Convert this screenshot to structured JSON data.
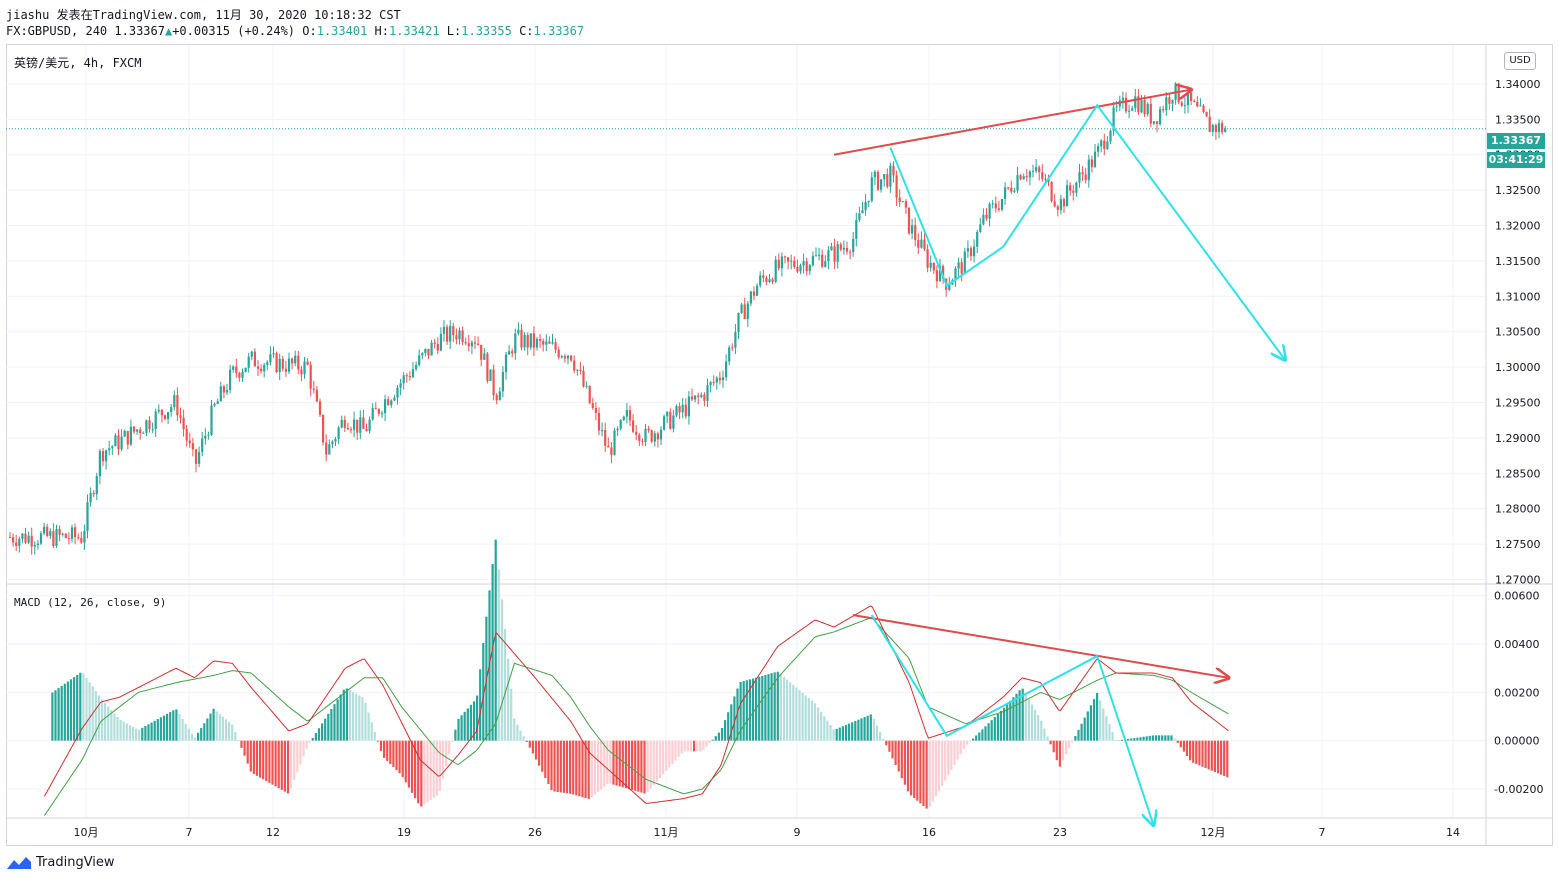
{
  "header": {
    "line1": "jiashu 发表在TradingView.com, 11月 30, 2020 10:18:32 CST",
    "symbol": "FX:GBPUSD, 240",
    "last": "1.33367",
    "change": "+0.00315 (+0.24%)",
    "o_label": "O:",
    "o": "1.33401",
    "h_label": "H:",
    "h": "1.33421",
    "l_label": "L:",
    "l": "1.33355",
    "c_label": "C:",
    "c": "1.33367"
  },
  "symbol_label": "英镑/美元, 4h, FXCM",
  "macd_label": "MACD (12, 26, close, 9)",
  "currency_badge": "USD",
  "price_tag": "1.33367",
  "countdown_tag": "03:41:29",
  "brand": "TradingView",
  "colors": {
    "up": "#26a69a",
    "down": "#ef5350",
    "arrow_red": "#e04b4b",
    "arrow_cyan": "#2de3e8",
    "macd_line": "#d32f2f",
    "signal_line": "#43a047"
  },
  "chart_data": [
    {
      "type": "candlestick",
      "title": "英镑/美元, 4h, FXCM",
      "y_ticks": [
        "1.34000",
        "1.33500",
        "1.33000",
        "1.32500",
        "1.32000",
        "1.31500",
        "1.31000",
        "1.30500",
        "1.30000",
        "1.29500",
        "1.29000",
        "1.28500",
        "1.28000",
        "1.27500",
        "1.27000"
      ],
      "ylim": [
        1.2695,
        1.3455
      ],
      "x_ticks": [
        "10月",
        "7",
        "12",
        "19",
        "26",
        "11月",
        "9",
        "16",
        "23",
        "12月",
        "7",
        "14"
      ],
      "last_price": 1.33367,
      "close_path": [
        {
          "date": "2020-09-30",
          "close": 1.276
        },
        {
          "date": "2020-10-01",
          "close": 1.288
        },
        {
          "date": "2020-10-02",
          "close": 1.2895
        },
        {
          "date": "2020-10-05",
          "close": 1.295
        },
        {
          "date": "2020-10-06",
          "close": 1.286
        },
        {
          "date": "2020-10-07",
          "close": 1.294
        },
        {
          "date": "2020-10-08",
          "close": 1.299
        },
        {
          "date": "2020-10-09",
          "close": 1.301
        },
        {
          "date": "2020-10-12",
          "close": 1.3
        },
        {
          "date": "2020-10-13",
          "close": 1.288
        },
        {
          "date": "2020-10-14",
          "close": 1.293
        },
        {
          "date": "2020-10-15",
          "close": 1.291
        },
        {
          "date": "2020-10-16",
          "close": 1.295
        },
        {
          "date": "2020-10-19",
          "close": 1.304
        },
        {
          "date": "2020-10-20",
          "close": 1.305
        },
        {
          "date": "2020-10-21",
          "close": 1.304
        },
        {
          "date": "2020-10-22",
          "close": 1.296
        },
        {
          "date": "2020-10-23",
          "close": 1.304
        },
        {
          "date": "2020-10-26",
          "close": 1.302
        },
        {
          "date": "2020-10-27",
          "close": 1.295
        },
        {
          "date": "2020-10-28",
          "close": 1.288
        },
        {
          "date": "2020-10-29",
          "close": 1.293
        },
        {
          "date": "2020-10-30",
          "close": 1.29
        },
        {
          "date": "2020-11-02",
          "close": 1.296
        },
        {
          "date": "2020-11-03",
          "close": 1.299
        },
        {
          "date": "2020-11-04",
          "close": 1.307
        },
        {
          "date": "2020-11-05",
          "close": 1.312
        },
        {
          "date": "2020-11-06",
          "close": 1.314
        },
        {
          "date": "2020-11-09",
          "close": 1.316
        },
        {
          "date": "2020-11-10",
          "close": 1.318
        },
        {
          "date": "2020-11-11",
          "close": 1.326
        },
        {
          "date": "2020-11-12",
          "close": 1.327
        },
        {
          "date": "2020-11-13",
          "close": 1.32
        },
        {
          "date": "2020-11-14",
          "close": 1.315
        },
        {
          "date": "2020-11-15",
          "close": 1.312
        },
        {
          "date": "2020-11-16",
          "close": 1.315
        },
        {
          "date": "2020-11-17",
          "close": 1.321
        },
        {
          "date": "2020-11-18",
          "close": 1.324
        },
        {
          "date": "2020-11-19",
          "close": 1.328
        },
        {
          "date": "2020-11-20",
          "close": 1.327
        },
        {
          "date": "2020-11-21",
          "close": 1.323
        },
        {
          "date": "2020-11-23",
          "close": 1.33
        },
        {
          "date": "2020-11-24",
          "close": 1.336
        },
        {
          "date": "2020-11-25",
          "close": 1.338
        },
        {
          "date": "2020-11-26",
          "close": 1.335
        },
        {
          "date": "2020-11-27",
          "close": 1.339
        },
        {
          "date": "2020-11-28",
          "close": 1.337
        },
        {
          "date": "2020-11-29",
          "close": 1.334
        },
        {
          "date": "2020-11-30",
          "close": 1.33367
        }
      ],
      "annotations": {
        "red_trendline": {
          "from": {
            "date": "2020-11-09",
            "price": 1.33
          },
          "to": {
            "date": "2020-11-28",
            "price": 1.3392
          }
        },
        "cyan_path": [
          {
            "date": "2020-11-12",
            "price": 1.331
          },
          {
            "date": "2020-11-15",
            "price": 1.3115
          },
          {
            "date": "2020-11-18",
            "price": 1.317
          },
          {
            "date": "2020-11-23",
            "price": 1.337
          },
          {
            "date": "2020-12-03",
            "price": 1.301
          }
        ]
      }
    },
    {
      "type": "line",
      "title": "MACD (12, 26, close, 9)",
      "y_ticks": [
        "0.00600",
        "0.00400",
        "0.00200",
        "0.00000",
        "-0.00200"
      ],
      "ylim": [
        -0.0032,
        0.0064
      ],
      "series": [
        {
          "name": "MACD",
          "values": [
            {
              "date": "2020-09-28",
              "value": -0.0023
            },
            {
              "date": "2020-09-30",
              "value": 0.0005
            },
            {
              "date": "2020-10-01",
              "value": 0.0016
            },
            {
              "date": "2020-10-02",
              "value": 0.0018
            },
            {
              "date": "2020-10-05",
              "value": 0.003
            },
            {
              "date": "2020-10-06",
              "value": 0.0026
            },
            {
              "date": "2020-10-07",
              "value": 0.0033
            },
            {
              "date": "2020-10-08",
              "value": 0.0032
            },
            {
              "date": "2020-10-09",
              "value": 0.0022
            },
            {
              "date": "2020-10-11",
              "value": 0.0004
            },
            {
              "date": "2020-10-12",
              "value": 0.0007
            },
            {
              "date": "2020-10-14",
              "value": 0.003
            },
            {
              "date": "2020-10-15",
              "value": 0.0034
            },
            {
              "date": "2020-10-16",
              "value": 0.0023
            },
            {
              "date": "2020-10-18",
              "value": -0.0008
            },
            {
              "date": "2020-10-19",
              "value": -0.0015
            },
            {
              "date": "2020-10-20",
              "value": -0.0006
            },
            {
              "date": "2020-10-21",
              "value": 0.0004
            },
            {
              "date": "2020-10-22",
              "value": 0.0045
            },
            {
              "date": "2020-10-24",
              "value": 0.0027
            },
            {
              "date": "2020-10-26",
              "value": 0.0008
            },
            {
              "date": "2020-10-27",
              "value": -0.0005
            },
            {
              "date": "2020-10-28",
              "value": -0.0012
            },
            {
              "date": "2020-10-30",
              "value": -0.0026
            },
            {
              "date": "2020-11-01",
              "value": -0.0024
            },
            {
              "date": "2020-11-02",
              "value": -0.0022
            },
            {
              "date": "2020-11-03",
              "value": -0.001
            },
            {
              "date": "2020-11-04",
              "value": 0.0015
            },
            {
              "date": "2020-11-06",
              "value": 0.0039
            },
            {
              "date": "2020-11-08",
              "value": 0.005
            },
            {
              "date": "2020-11-09",
              "value": 0.0047
            },
            {
              "date": "2020-11-11",
              "value": 0.0056
            },
            {
              "date": "2020-11-13",
              "value": 0.0024
            },
            {
              "date": "2020-11-14",
              "value": 0.0001
            },
            {
              "date": "2020-11-16",
              "value": 0.0006
            },
            {
              "date": "2020-11-18",
              "value": 0.0018
            },
            {
              "date": "2020-11-19",
              "value": 0.0026
            },
            {
              "date": "2020-11-20",
              "value": 0.0024
            },
            {
              "date": "2020-11-21",
              "value": 0.0012
            },
            {
              "date": "2020-11-23",
              "value": 0.0034
            },
            {
              "date": "2020-11-24",
              "value": 0.0028
            },
            {
              "date": "2020-11-26",
              "value": 0.0028
            },
            {
              "date": "2020-11-27",
              "value": 0.0026
            },
            {
              "date": "2020-11-28",
              "value": 0.0016
            },
            {
              "date": "2020-11-30",
              "value": 0.0004
            }
          ]
        },
        {
          "name": "Signal",
          "values": [
            {
              "date": "2020-09-28",
              "value": -0.0031
            },
            {
              "date": "2020-09-30",
              "value": -0.0008
            },
            {
              "date": "2020-10-01",
              "value": 0.0008
            },
            {
              "date": "2020-10-03",
              "value": 0.002
            },
            {
              "date": "2020-10-05",
              "value": 0.0024
            },
            {
              "date": "2020-10-07",
              "value": 0.0027
            },
            {
              "date": "2020-10-08",
              "value": 0.0029
            },
            {
              "date": "2020-10-09",
              "value": 0.0028
            },
            {
              "date": "2020-10-11",
              "value": 0.0014
            },
            {
              "date": "2020-10-12",
              "value": 0.0008
            },
            {
              "date": "2020-10-13",
              "value": 0.0014
            },
            {
              "date": "2020-10-15",
              "value": 0.0026
            },
            {
              "date": "2020-10-16",
              "value": 0.0026
            },
            {
              "date": "2020-10-17",
              "value": 0.0014
            },
            {
              "date": "2020-10-19",
              "value": -0.0005
            },
            {
              "date": "2020-10-20",
              "value": -0.001
            },
            {
              "date": "2020-10-21",
              "value": -0.0004
            },
            {
              "date": "2020-10-22",
              "value": 0.0007
            },
            {
              "date": "2020-10-23",
              "value": 0.0032
            },
            {
              "date": "2020-10-25",
              "value": 0.0027
            },
            {
              "date": "2020-10-26",
              "value": 0.0018
            },
            {
              "date": "2020-10-27",
              "value": 0.0006
            },
            {
              "date": "2020-10-28",
              "value": -0.0004
            },
            {
              "date": "2020-10-30",
              "value": -0.0016
            },
            {
              "date": "2020-11-01",
              "value": -0.0022
            },
            {
              "date": "2020-11-02",
              "value": -0.002
            },
            {
              "date": "2020-11-03",
              "value": -0.0012
            },
            {
              "date": "2020-11-04",
              "value": 0.0004
            },
            {
              "date": "2020-11-06",
              "value": 0.0026
            },
            {
              "date": "2020-11-08",
              "value": 0.0043
            },
            {
              "date": "2020-11-09",
              "value": 0.0045
            },
            {
              "date": "2020-11-11",
              "value": 0.0051
            },
            {
              "date": "2020-11-13",
              "value": 0.0034
            },
            {
              "date": "2020-11-14",
              "value": 0.0014
            },
            {
              "date": "2020-11-16",
              "value": 0.0007
            },
            {
              "date": "2020-11-18",
              "value": 0.0012
            },
            {
              "date": "2020-11-20",
              "value": 0.002
            },
            {
              "date": "2020-11-21",
              "value": 0.0017
            },
            {
              "date": "2020-11-23",
              "value": 0.0025
            },
            {
              "date": "2020-11-24",
              "value": 0.0028
            },
            {
              "date": "2020-11-26",
              "value": 0.0027
            },
            {
              "date": "2020-11-27",
              "value": 0.0025
            },
            {
              "date": "2020-11-28",
              "value": 0.002
            },
            {
              "date": "2020-11-30",
              "value": 0.0011
            }
          ]
        }
      ],
      "annotations": {
        "red_trendline": {
          "from": {
            "date": "2020-11-10",
            "value": 0.0052
          },
          "to": {
            "date": "2020-11-30",
            "value": 0.0026
          }
        },
        "cyan_path": [
          {
            "date": "2020-11-11",
            "value": 0.0052
          },
          {
            "date": "2020-11-15",
            "value": 0.0002
          },
          {
            "date": "2020-11-23",
            "value": 0.0035
          },
          {
            "date": "2020-11-26",
            "value": -0.0035
          }
        ]
      }
    }
  ]
}
